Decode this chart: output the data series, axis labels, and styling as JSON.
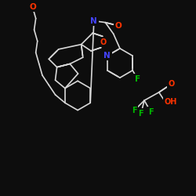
{
  "background": "#0d0d0d",
  "bond_color": "#d8d8d8",
  "atom_colors": {
    "F": "#00bb00",
    "N": "#4444ff",
    "O": "#ff3300",
    "C": "#d8d8d8",
    "H": "#d8d8d8"
  },
  "figsize": [
    2.5,
    2.5
  ],
  "dpi": 100
}
